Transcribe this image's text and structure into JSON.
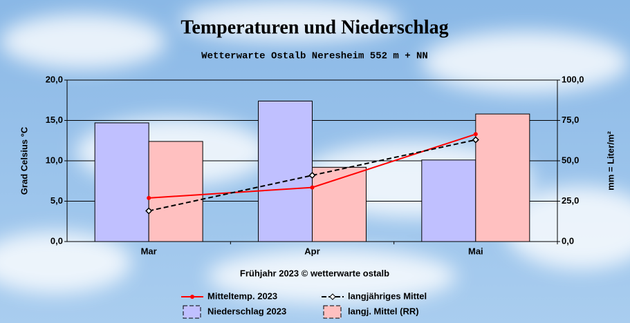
{
  "chart_data": {
    "type": "bar",
    "title": "Temperaturen und Niederschlag",
    "subtitle": "Wetterwarte Ostalb Neresheim 552 m + NN",
    "x_label": "Frühjahr 2023  © wetterwarte ostalb",
    "y_label": "Grad Celsius °C",
    "y2_label": "mm = Liter/m²",
    "categories": [
      "Mar",
      "Apr",
      "Mai"
    ],
    "ylim": [
      0,
      20
    ],
    "yticks": [
      {
        "value": 0,
        "label": "0,0"
      },
      {
        "value": 5,
        "label": "5,0"
      },
      {
        "value": 10,
        "label": "10,0"
      },
      {
        "value": 15,
        "label": "15,0"
      },
      {
        "value": 20,
        "label": "20,0"
      }
    ],
    "y2lim": [
      0,
      100
    ],
    "y2ticks": [
      {
        "value": 0,
        "label": "0,0"
      },
      {
        "value": 25,
        "label": "25,0"
      },
      {
        "value": 50,
        "label": "50,0"
      },
      {
        "value": 75,
        "label": "75,0"
      },
      {
        "value": 100,
        "label": "100,0"
      }
    ],
    "grid": true,
    "series": [
      {
        "name": "Niederschlag 2023",
        "type": "bar",
        "axis": "y2",
        "color": "#c0c0ff",
        "values": [
          73.5,
          87,
          50.5
        ]
      },
      {
        "name": "langj. Mittel (RR)",
        "type": "bar",
        "axis": "y2",
        "color": "#ffc0c0",
        "values": [
          62,
          46,
          79
        ]
      },
      {
        "name": "Mitteltemp. 2023",
        "type": "line",
        "color": "#ff0000",
        "values": [
          5.4,
          6.7,
          13.3
        ]
      },
      {
        "name": "langjähriges Mittel",
        "type": "line",
        "color": "#000000",
        "dashed": true,
        "values": [
          3.8,
          8.2,
          12.6
        ]
      }
    ]
  }
}
